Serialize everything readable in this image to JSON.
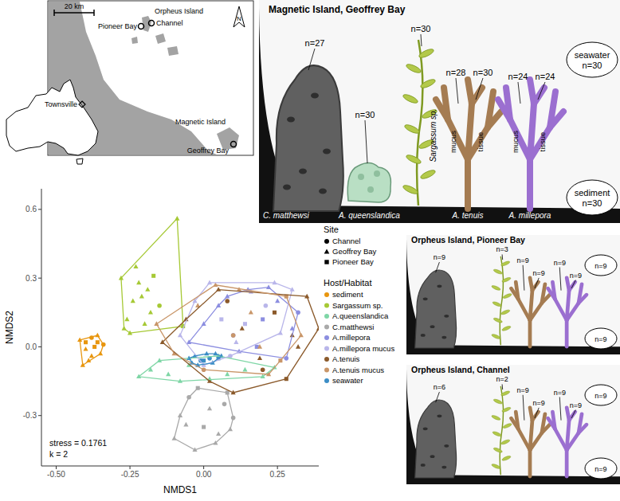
{
  "map": {
    "scale_label": "20 km",
    "north": "N",
    "places": [
      "Orpheus Island",
      "Channel",
      "Pioneer Bay",
      "Magnetic Island",
      "Geoffrey Bay",
      "Townsville"
    ]
  },
  "scenes": [
    {
      "title": "Magnetic Island, Geoffrey Bay",
      "n_labels": [
        "n=27",
        "n=30",
        "n=30",
        "n=28",
        "n=30",
        "n=24",
        "n=24"
      ],
      "water": [
        "seawater",
        "n=30"
      ],
      "sediment": [
        "sediment",
        "n=30"
      ],
      "host_labels": [
        "C. matthewsi",
        "A. queenslandica",
        "Sargassum sp.",
        "A. tenuis",
        "A. millepora"
      ],
      "part_labels": [
        "mucus",
        "tissue"
      ]
    },
    {
      "title": "Orpheus Island, Pioneer Bay",
      "n_labels": [
        "n=9",
        null,
        "n=3",
        "n=9",
        "n=9",
        "n=9",
        "n=9"
      ],
      "water": [
        "n=9"
      ],
      "sediment": [
        "n=9"
      ]
    },
    {
      "title": "Orpheus Island, Channel",
      "n_labels": [
        "n=6",
        null,
        "n=2",
        "n=9",
        "n=9",
        "n=9",
        "n=9"
      ],
      "water": [
        "n=9"
      ],
      "sediment": [
        "n=9"
      ]
    }
  ],
  "chart_data": {
    "type": "scatter",
    "xlabel": "NMDS1",
    "ylabel": "NMDS2",
    "xlim": [
      -0.55,
      0.39
    ],
    "ylim": [
      -0.52,
      0.69
    ],
    "xticks": [
      {
        "value": -0.5,
        "label": "-0.50"
      },
      -0.25,
      {
        "value": 0,
        "label": "0.00"
      },
      0.25
    ],
    "yticks": [
      -0.3,
      {
        "value": 0,
        "label": "0.0"
      },
      0.3,
      0.6
    ],
    "grid": false,
    "legend": "right",
    "annotations": [
      "stress = 0.1761",
      "k = 2"
    ],
    "sites": {
      "title": "Site",
      "names": [
        "Channel",
        "Geoffrey Bay",
        "Pioneer Bay"
      ],
      "markers": [
        "circle",
        "triangle",
        "square"
      ]
    },
    "legend_title": "Host/Habitat",
    "series": [
      {
        "name": "sediment",
        "color": "#e8960f",
        "x": [
          -0.42,
          -0.4,
          -0.38,
          -0.36,
          -0.35,
          -0.39,
          -0.41,
          -0.37,
          -0.34,
          -0.38,
          -0.36,
          -0.4
        ],
        "y": [
          0.03,
          -0.01,
          0.04,
          0.02,
          -0.03,
          -0.06,
          -0.08,
          0.0,
          0.01,
          -0.04,
          0.05,
          0.02
        ],
        "site": [
          "Geoffrey Bay",
          "Geoffrey Bay",
          "Channel",
          "Pioneer Bay",
          "Geoffrey Bay",
          "Geoffrey Bay",
          "Geoffrey Bay",
          "Pioneer Bay",
          "Channel",
          "Geoffrey Bay",
          "Geoffrey Bay",
          "Pioneer Bay"
        ]
      },
      {
        "name": "Sargassum sp.",
        "color": "#a6c935",
        "x": [
          -0.28,
          -0.26,
          -0.24,
          -0.22,
          -0.2,
          -0.18,
          -0.25,
          -0.23,
          -0.21,
          -0.19,
          -0.09,
          -0.07,
          -0.15,
          -0.27,
          -0.17
        ],
        "y": [
          0.3,
          0.12,
          0.2,
          0.28,
          0.1,
          0.15,
          0.06,
          0.35,
          0.22,
          0.25,
          0.56,
          0.09,
          0.18,
          0.08,
          0.31
        ],
        "site": [
          "Geoffrey Bay",
          "Geoffrey Bay",
          "Geoffrey Bay",
          "Geoffrey Bay",
          "Geoffrey Bay",
          "Geoffrey Bay",
          "Geoffrey Bay",
          "Geoffrey Bay",
          "Geoffrey Bay",
          "Geoffrey Bay",
          "Geoffrey Bay",
          "Pioneer Bay",
          "Channel",
          "Geoffrey Bay",
          "Pioneer Bay"
        ]
      },
      {
        "name": "A.queenslandica",
        "color": "#7fd6a6",
        "x": [
          -0.22,
          -0.18,
          -0.12,
          -0.05,
          0.02,
          0.08,
          0.14,
          0.2,
          0.24,
          -0.15,
          0.05,
          -0.08
        ],
        "y": [
          -0.13,
          -0.1,
          -0.12,
          -0.08,
          -0.14,
          -0.12,
          -0.1,
          -0.13,
          -0.09,
          -0.06,
          -0.04,
          -0.15
        ],
        "site": [
          "Geoffrey Bay",
          "Geoffrey Bay",
          "Geoffrey Bay",
          "Geoffrey Bay",
          "Geoffrey Bay",
          "Geoffrey Bay",
          "Geoffrey Bay",
          "Geoffrey Bay",
          "Geoffrey Bay",
          "Geoffrey Bay",
          "Geoffrey Bay",
          "Geoffrey Bay"
        ]
      },
      {
        "name": "C.matthewsi",
        "color": "#a9a9a9",
        "x": [
          -0.1,
          -0.08,
          -0.05,
          -0.03,
          0.0,
          0.02,
          0.05,
          0.08,
          0.1,
          -0.06,
          0.04,
          0.07,
          -0.02,
          0.09
        ],
        "y": [
          -0.4,
          -0.3,
          -0.22,
          -0.45,
          -0.35,
          -0.27,
          -0.38,
          -0.2,
          -0.31,
          -0.34,
          -0.42,
          -0.25,
          -0.18,
          -0.36
        ],
        "site": [
          "Geoffrey Bay",
          "Geoffrey Bay",
          "Channel",
          "Geoffrey Bay",
          "Pioneer Bay",
          "Geoffrey Bay",
          "Geoffrey Bay",
          "Pioneer Bay",
          "Channel",
          "Geoffrey Bay",
          "Geoffrey Bay",
          "Channel",
          "Pioneer Bay",
          "Geoffrey Bay"
        ]
      },
      {
        "name": "A.millepora",
        "color": "#8c8ee0",
        "x": [
          -0.05,
          0.0,
          0.05,
          0.1,
          0.15,
          0.2,
          0.25,
          0.3,
          0.32,
          0.12,
          0.18,
          0.22,
          0.08,
          0.28
        ],
        "y": [
          0.02,
          0.1,
          0.18,
          0.05,
          0.25,
          0.12,
          0.2,
          0.08,
          0.15,
          -0.02,
          0.0,
          0.26,
          0.22,
          -0.05
        ],
        "site": [
          "Geoffrey Bay",
          "Geoffrey Bay",
          "Geoffrey Bay",
          "Channel",
          "Geoffrey Bay",
          "Pioneer Bay",
          "Geoffrey Bay",
          "Geoffrey Bay",
          "Channel",
          "Geoffrey Bay",
          "Pioneer Bay",
          "Geoffrey Bay",
          "Geoffrey Bay",
          "Channel"
        ]
      },
      {
        "name": "A.millepora mucus",
        "color": "#b9b6ea",
        "x": [
          -0.08,
          -0.03,
          0.02,
          0.06,
          0.11,
          0.16,
          0.21,
          0.26,
          0.3,
          0.0,
          0.09,
          0.14,
          0.24
        ],
        "y": [
          0.05,
          0.2,
          0.28,
          0.12,
          0.02,
          0.24,
          0.18,
          0.06,
          0.25,
          -0.08,
          -0.04,
          0.1,
          0.28
        ],
        "site": [
          "Geoffrey Bay",
          "Geoffrey Bay",
          "Geoffrey Bay",
          "Pioneer Bay",
          "Geoffrey Bay",
          "Geoffrey Bay",
          "Channel",
          "Geoffrey Bay",
          "Geoffrey Bay",
          "Geoffrey Bay",
          "Channel",
          "Pioneer Bay",
          "Geoffrey Bay"
        ]
      },
      {
        "name": "A.tenuis",
        "color": "#8b5a2b",
        "x": [
          -0.14,
          -0.06,
          0.02,
          0.08,
          0.13,
          0.19,
          0.24,
          0.3,
          0.35,
          0.39,
          0.1,
          0.2,
          0.05,
          0.28,
          0.32
        ],
        "y": [
          0.02,
          0.12,
          -0.15,
          0.2,
          0.08,
          -0.05,
          0.15,
          0.05,
          0.22,
          0.08,
          -0.2,
          -0.1,
          0.25,
          -0.14,
          0.0
        ],
        "site": [
          "Geoffrey Bay",
          "Geoffrey Bay",
          "Geoffrey Bay",
          "Channel",
          "Geoffrey Bay",
          "Geoffrey Bay",
          "Pioneer Bay",
          "Geoffrey Bay",
          "Geoffrey Bay",
          "Geoffrey Bay",
          "Geoffrey Bay",
          "Channel",
          "Geoffrey Bay",
          "Pioneer Bay",
          "Geoffrey Bay"
        ]
      },
      {
        "name": "A.tenuis mucus",
        "color": "#c99669",
        "x": [
          -0.16,
          -0.1,
          -0.02,
          0.04,
          0.1,
          0.16,
          0.22,
          0.28,
          0.33,
          0.0,
          0.12,
          0.19,
          0.26
        ],
        "y": [
          0.1,
          -0.03,
          0.18,
          0.27,
          0.05,
          0.15,
          -0.12,
          0.22,
          0.05,
          -0.1,
          0.25,
          0.0,
          -0.06
        ],
        "site": [
          "Geoffrey Bay",
          "Geoffrey Bay",
          "Geoffrey Bay",
          "Geoffrey Bay",
          "Channel",
          "Geoffrey Bay",
          "Geoffrey Bay",
          "Pioneer Bay",
          "Geoffrey Bay",
          "Channel",
          "Geoffrey Bay",
          "Geoffrey Bay",
          "Pioneer Bay"
        ]
      },
      {
        "name": "seawater",
        "color": "#3c8ec6",
        "x": [
          -0.05,
          -0.03,
          -0.01,
          0.01,
          0.03,
          0.05,
          0.06,
          -0.02,
          0.02,
          0.04,
          0.0,
          -0.04
        ],
        "y": [
          -0.05,
          -0.04,
          -0.06,
          -0.03,
          -0.07,
          -0.05,
          -0.04,
          -0.08,
          -0.05,
          -0.03,
          -0.06,
          -0.07
        ],
        "site": [
          "Geoffrey Bay",
          "Geoffrey Bay",
          "Channel",
          "Geoffrey Bay",
          "Geoffrey Bay",
          "Pioneer Bay",
          "Geoffrey Bay",
          "Geoffrey Bay",
          "Channel",
          "Geoffrey Bay",
          "Pioneer Bay",
          "Geoffrey Bay"
        ]
      }
    ]
  }
}
